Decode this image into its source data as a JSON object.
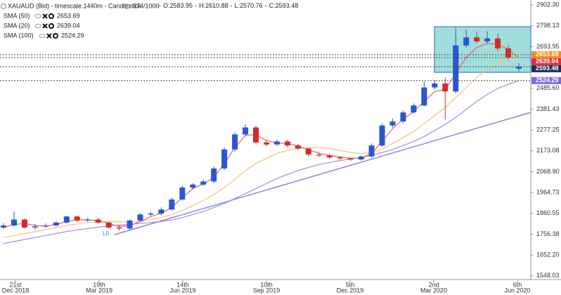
{
  "chart_data": {
    "type": "candlestick",
    "title": "XAUAUD (Bid) - timescale.1440m - Candlestick",
    "bar_count": "374/1000",
    "ohlc_labels": [
      "O:",
      "H:",
      "L:",
      "C:"
    ],
    "annotation": "L0",
    "x_labels": [
      "21st",
      "19th",
      "14th",
      "10th",
      "5th",
      "2nd",
      "6th"
    ],
    "x_label_dates": [
      "Dec 2018",
      "Mar 2019",
      "Jun 2019",
      "Sep 2019",
      "Dec 2019",
      "Mar 2020",
      "Jun 2020"
    ],
    "ylim": [
      1530,
      2927
    ],
    "yticks": [
      {
        "value": 2902.3,
        "label": "2902.30"
      },
      2798.13,
      2693.95,
      {
        "value": 2485.6,
        "label": "2485.60"
      },
      2381.43,
      2277.25,
      2173.08,
      {
        "value": 2068.9,
        "label": "2068.90"
      },
      1964.73,
      1860.55,
      1756.38,
      {
        "value": 1652.2,
        "label": "1652.20"
      },
      1548.03
    ],
    "grid": false,
    "up_color": "#2a56d0",
    "down_color": "#d42a2a",
    "open": [
      1790,
      1800,
      1830,
      1790,
      1795,
      1800,
      1815,
      1845,
      1825,
      1830,
      1815,
      1790,
      1785,
      1825,
      1855,
      1860,
      1880,
      1930,
      1990,
      2005,
      2020,
      2085,
      2180,
      2255,
      2290,
      2215,
      2205,
      2220,
      2200,
      2185,
      2155,
      2150,
      2140,
      2135,
      2130,
      2145,
      2200,
      2300,
      2320,
      2365,
      2400,
      2490,
      2510,
      2470,
      2700,
      2740,
      2720,
      2735,
      2685,
      2583.95
    ],
    "high": [
      1812,
      1870,
      1835,
      1808,
      1810,
      1820,
      1850,
      1850,
      1840,
      1838,
      1820,
      1800,
      1830,
      1862,
      1868,
      1890,
      1940,
      2000,
      2012,
      2030,
      2095,
      2190,
      2265,
      2305,
      2300,
      2225,
      2230,
      2228,
      2208,
      2190,
      2162,
      2158,
      2146,
      2140,
      2150,
      2210,
      2310,
      2335,
      2375,
      2410,
      2520,
      2525,
      2540,
      2790,
      2780,
      2770,
      2770,
      2760,
      2700,
      2610.88
    ],
    "low": [
      1782,
      1795,
      1785,
      1780,
      1788,
      1795,
      1810,
      1818,
      1818,
      1810,
      1785,
      1775,
      1778,
      1818,
      1848,
      1852,
      1875,
      1925,
      1980,
      1998,
      2012,
      2078,
      2170,
      2245,
      2205,
      2195,
      2198,
      2192,
      2178,
      2148,
      2142,
      2132,
      2128,
      2122,
      2125,
      2140,
      2192,
      2290,
      2310,
      2360,
      2395,
      2480,
      2330,
      2460,
      2690,
      2710,
      2710,
      2670,
      2630,
      2570.76
    ],
    "close": [
      1800,
      1830,
      1790,
      1795,
      1800,
      1815,
      1845,
      1825,
      1830,
      1815,
      1790,
      1785,
      1825,
      1855,
      1860,
      1880,
      1930,
      1990,
      2005,
      2020,
      2085,
      2180,
      2255,
      2290,
      2215,
      2205,
      2220,
      2200,
      2185,
      2155,
      2150,
      2140,
      2135,
      2130,
      2145,
      2200,
      2300,
      2320,
      2365,
      2400,
      2490,
      2510,
      2470,
      2700,
      2740,
      2720,
      2735,
      2685,
      2640,
      2593.48
    ],
    "series": [
      {
        "name": "SMA (50)",
        "color": "#f2c27a",
        "label_color": "#f08c1e",
        "values": [
          1740,
          1750,
          1760,
          1770,
          1780,
          1790,
          1800,
          1808,
          1815,
          1818,
          1820,
          1818,
          1818,
          1820,
          1830,
          1840,
          1855,
          1875,
          1900,
          1925,
          1955,
          1990,
          2030,
          2075,
          2110,
          2135,
          2160,
          2175,
          2185,
          2190,
          2190,
          2185,
          2175,
          2165,
          2160,
          2165,
          2180,
          2210,
          2240,
          2270,
          2310,
          2350,
          2390,
          2440,
          2490,
          2540,
          2580,
          2610,
          2635,
          2653.69
        ]
      },
      {
        "name": "SMA (20)",
        "color": "#e8606a",
        "label_color": "#e0303a",
        "values": [
          1790,
          1805,
          1810,
          1800,
          1797,
          1805,
          1820,
          1830,
          1828,
          1825,
          1810,
          1795,
          1800,
          1820,
          1845,
          1862,
          1890,
          1940,
          1985,
          2008,
          2040,
          2110,
          2190,
          2250,
          2255,
          2225,
          2212,
          2210,
          2198,
          2178,
          2162,
          2150,
          2142,
          2136,
          2138,
          2160,
          2220,
          2285,
          2330,
          2370,
          2420,
          2470,
          2480,
          2560,
          2640,
          2690,
          2710,
          2705,
          2680,
          2639.04
        ]
      },
      {
        "name": "SMA (100)",
        "color": "#9c8fe6",
        "label_color": "#7b6be0",
        "values": [
          1710,
          1720,
          1730,
          1740,
          1750,
          1760,
          1770,
          1778,
          1785,
          1792,
          1798,
          1802,
          1806,
          1810,
          1815,
          1820,
          1828,
          1840,
          1855,
          1870,
          1890,
          1910,
          1935,
          1960,
          1985,
          2010,
          2035,
          2055,
          2075,
          2090,
          2105,
          2115,
          2125,
          2132,
          2140,
          2150,
          2165,
          2180,
          2200,
          2220,
          2245,
          2275,
          2305,
          2340,
          2380,
          2420,
          2455,
          2485,
          2505,
          2524.29
        ]
      }
    ],
    "price_color": "#1e2a5a"
  }
}
